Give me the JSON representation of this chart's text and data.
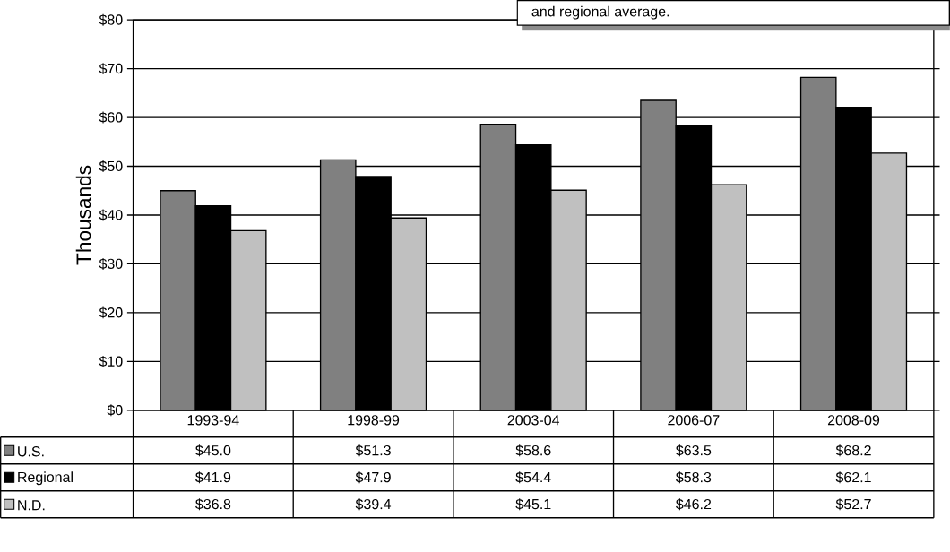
{
  "chart_data": {
    "type": "bar",
    "categories": [
      "1993-94",
      "1998-99",
      "2003-04",
      "2006-07",
      "2008-09"
    ],
    "series": [
      {
        "name": "U.S.",
        "color": "#808080",
        "values": [
          45.0,
          51.3,
          58.6,
          63.5,
          68.2
        ],
        "value_labels": [
          "$45.0",
          "$51.3",
          "$58.6",
          "$63.5",
          "$68.2"
        ]
      },
      {
        "name": "Regional",
        "color": "#000000",
        "values": [
          41.9,
          47.9,
          54.4,
          58.3,
          62.1
        ],
        "value_labels": [
          "$41.9",
          "$47.9",
          "$54.4",
          "$58.3",
          "$62.1"
        ]
      },
      {
        "name": "N.D.",
        "color": "#c0c0c0",
        "values": [
          36.8,
          39.4,
          45.1,
          46.2,
          52.7
        ],
        "value_labels": [
          "$36.8",
          "$39.4",
          "$45.1",
          "$46.2",
          "$52.7"
        ]
      }
    ],
    "ylabel": "Thousands",
    "ylim": [
      0,
      80
    ],
    "yticks": [
      {
        "value": 0,
        "label": "$0"
      },
      {
        "value": 10,
        "label": "$10"
      },
      {
        "value": 20,
        "label": "$20"
      },
      {
        "value": 30,
        "label": "$30"
      },
      {
        "value": 40,
        "label": "$40"
      },
      {
        "value": 50,
        "label": "$50"
      },
      {
        "value": 60,
        "label": "$60"
      },
      {
        "value": 70,
        "label": "$70"
      },
      {
        "value": 80,
        "label": "$80"
      }
    ],
    "grid": "y",
    "legend": "bottom",
    "annotations": [
      "and regional average."
    ]
  }
}
